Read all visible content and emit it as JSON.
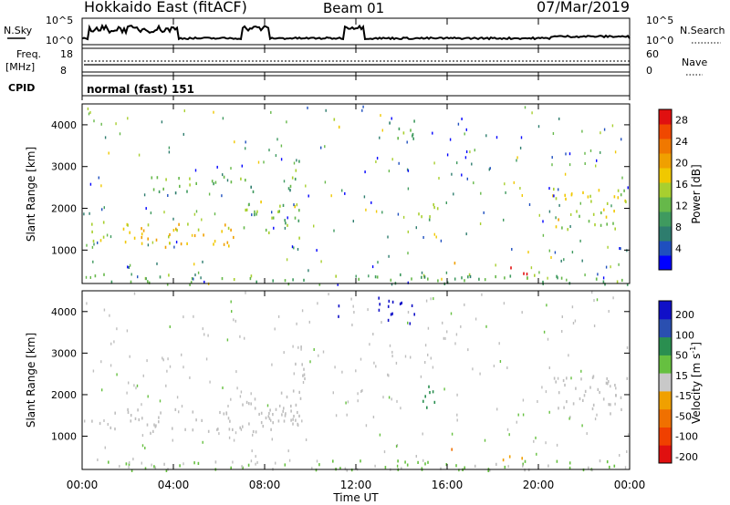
{
  "header": {
    "station": "Hokkaido East (fitACF)",
    "beam": "Beam 01",
    "date": "07/Mar/2019"
  },
  "panels": {
    "nsky_label": "N.Sky",
    "nsky_ticks": [
      "10^5",
      "10^0"
    ],
    "nsearch_ticks": [
      "10^5",
      "10^0"
    ],
    "nsearch_label": "N.Search",
    "freq_label": "Freq.",
    "freq_unit": "[MHz]",
    "freq_ticks": [
      "18",
      "8"
    ],
    "nave_ticks": [
      "60",
      "0"
    ],
    "nave_label": "Nave",
    "cpid_label": "CPID",
    "cpid_value": "normal (fast) 151"
  },
  "colors": {
    "power_scale": [
      "#0000ff",
      "#1f4fbf",
      "#2e7d6e",
      "#3f9a5f",
      "#66b84a",
      "#a8cf2f",
      "#f0c800",
      "#f0a000",
      "#f07800",
      "#f04800",
      "#e01010"
    ],
    "velocity_scale": [
      "#1010c8",
      "#2a4fb0",
      "#2a8f50",
      "#66c040",
      "#c8c8c8",
      "#f0a000",
      "#f07000",
      "#f04000",
      "#e01010"
    ],
    "ground_scatter": "#bebebe"
  },
  "chart_data": [
    {
      "type": "heatmap",
      "title": "",
      "xlabel": "",
      "ylabel": "Slant Range [km]",
      "xlim": [
        "00:00",
        "00:00"
      ],
      "ylim": [
        200,
        4500
      ],
      "y_ticks": [
        "1000",
        "2000",
        "3000",
        "4000"
      ],
      "colorbar": {
        "label": "Power [dB]",
        "ticks": [
          "4",
          "8",
          "12",
          "16",
          "20",
          "24",
          "28"
        ],
        "range": [
          0,
          30
        ]
      },
      "echo_regions": [
        {
          "t": [
            0.4,
            7.0
          ],
          "r": [
            1100,
            1700
          ],
          "value": 18
        },
        {
          "t": [
            7.0,
            9.6
          ],
          "r": [
            1300,
            2200
          ],
          "value": 13
        },
        {
          "t": [
            9.0,
            9.8
          ],
          "r": [
            2400,
            3200
          ],
          "value": 12
        },
        {
          "t": [
            2.5,
            7.5
          ],
          "r": [
            2400,
            2800
          ],
          "value": 11
        },
        {
          "t": [
            10.8,
            11.3
          ],
          "r": [
            3900,
            4200
          ],
          "value": 15
        },
        {
          "t": [
            13.3,
            14.6
          ],
          "r": [
            3700,
            4300
          ],
          "value": 12
        },
        {
          "t": [
            14.6,
            15.6
          ],
          "r": [
            1700,
            2300
          ],
          "value": 14
        },
        {
          "t": [
            15.8,
            16.6
          ],
          "r": [
            600,
            750
          ],
          "value": 22
        },
        {
          "t": [
            18.2,
            19.6
          ],
          "r": [
            450,
            650
          ],
          "value": 27
        },
        {
          "t": [
            20.6,
            23.9
          ],
          "r": [
            1500,
            2500
          ],
          "value": 16
        },
        {
          "t": [
            0,
            24
          ],
          "r": [
            200,
            450
          ],
          "value": 12
        }
      ]
    },
    {
      "type": "heatmap",
      "title": "",
      "xlabel": "Time UT",
      "ylabel": "Slant Range [km]",
      "xlim": [
        "00:00",
        "00:00"
      ],
      "ylim": [
        200,
        4500
      ],
      "x_ticks": [
        "00:00",
        "04:00",
        "08:00",
        "12:00",
        "16:00",
        "20:00",
        "00:00"
      ],
      "y_ticks": [
        "1000",
        "2000",
        "3000",
        "4000"
      ],
      "colorbar": {
        "label": "Velocity [m s",
        "label_exp": "-1",
        "label_end": "]",
        "ticks": [
          "200",
          "100",
          "50",
          "15",
          "-15",
          "-50",
          "-100",
          "-200"
        ]
      },
      "echo_regions": [
        {
          "t": [
            0.4,
            9.6
          ],
          "r": [
            1100,
            1700
          ],
          "value": 0
        },
        {
          "t": [
            7.0,
            9.6
          ],
          "r": [
            1300,
            2200
          ],
          "value": 0
        },
        {
          "t": [
            9.0,
            9.8
          ],
          "r": [
            2400,
            3200
          ],
          "value": 0
        },
        {
          "t": [
            10.8,
            11.3
          ],
          "r": [
            3900,
            4200
          ],
          "value": 250
        },
        {
          "t": [
            12.8,
            14.6
          ],
          "r": [
            3700,
            4400
          ],
          "value": 250
        },
        {
          "t": [
            14.6,
            15.6
          ],
          "r": [
            1700,
            2300
          ],
          "value": 60
        },
        {
          "t": [
            15.8,
            16.6
          ],
          "r": [
            600,
            750
          ],
          "value": -60
        },
        {
          "t": [
            18.2,
            19.6
          ],
          "r": [
            450,
            650
          ],
          "value": -30
        },
        {
          "t": [
            20.6,
            23.9
          ],
          "r": [
            1500,
            2500
          ],
          "value": 0
        },
        {
          "t": [
            0,
            24
          ],
          "r": [
            200,
            450
          ],
          "value": 20
        }
      ]
    }
  ]
}
